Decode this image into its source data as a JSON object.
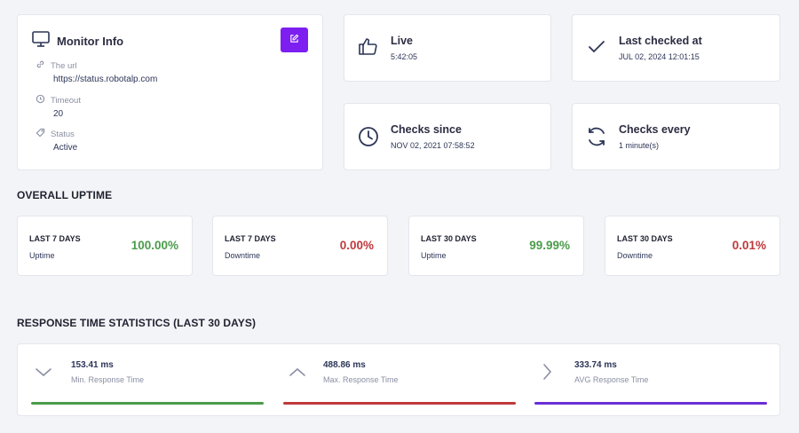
{
  "monitor": {
    "title": "Monitor Info",
    "fields": [
      {
        "label": "The url",
        "value": "https://status.robotalp.com"
      },
      {
        "label": "Timeout",
        "value": "20"
      },
      {
        "label": "Status",
        "value": "Active"
      }
    ]
  },
  "stats": {
    "live": {
      "title": "Live",
      "value": "5:42:05"
    },
    "last_checked": {
      "title": "Last checked at",
      "value": "JUL 02, 2024 12:01:15"
    },
    "checks_since": {
      "title": "Checks since",
      "value": "NOV 02, 2021 07:58:52"
    },
    "checks_every": {
      "title": "Checks every",
      "value": "1 minute(s)"
    }
  },
  "overall_uptime": {
    "title": "OVERALL UPTIME",
    "cards": [
      {
        "period": "LAST 7 DAYS",
        "label": "Uptime",
        "value": "100.00%"
      },
      {
        "period": "LAST 7 DAYS",
        "label": "Downtime",
        "value": "0.00%"
      },
      {
        "period": "LAST 30 DAYS",
        "label": "Uptime",
        "value": "99.99%"
      },
      {
        "period": "LAST 30 DAYS",
        "label": "Downtime",
        "value": "0.01%"
      }
    ]
  },
  "response_time": {
    "title": "RESPONSE TIME STATISTICS (LAST 30 DAYS)",
    "items": [
      {
        "value": "153.41 ms",
        "label": "Min. Response Time"
      },
      {
        "value": "488.86 ms",
        "label": "Max. Response Time"
      },
      {
        "value": "333.74 ms",
        "label": "AVG Response Time"
      }
    ]
  },
  "colors": {
    "accent": "#7c1ff0",
    "green": "#4a9b4a",
    "red": "#c0393b",
    "purple": "#6a2fd6",
    "navy": "#2c3557"
  }
}
